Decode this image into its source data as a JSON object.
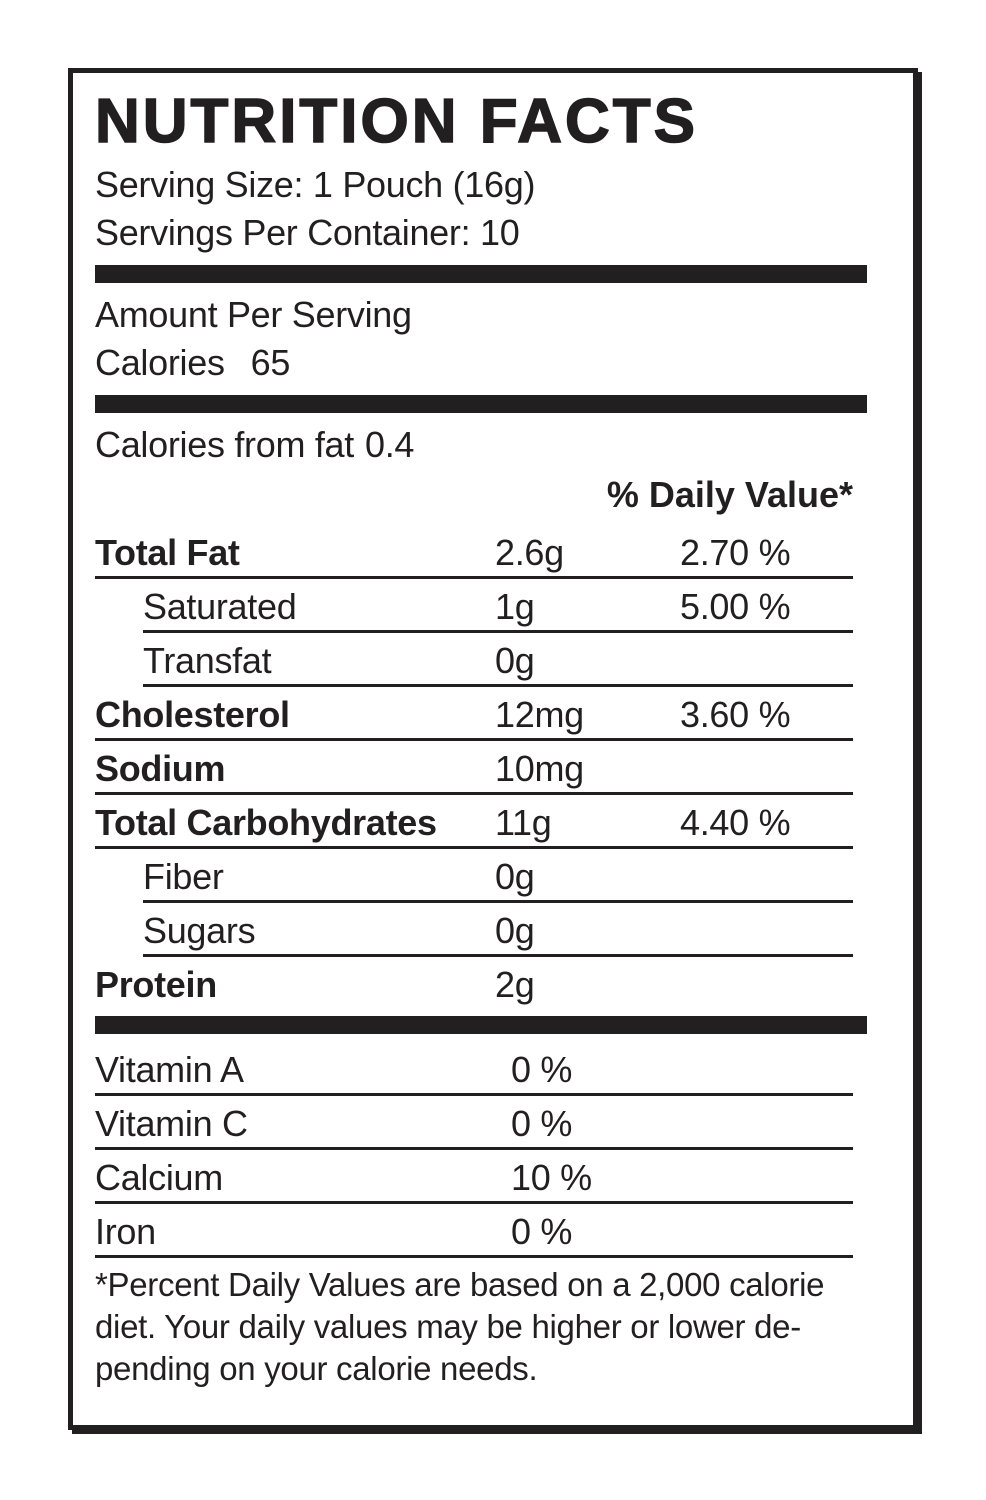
{
  "label": {
    "title": "NUTRITION FACTS",
    "serving_size": "Serving Size: 1 Pouch (16g)",
    "servings_per_container": "Servings Per Container: 10",
    "amount_per_serving": "Amount Per Serving",
    "calories_label": "Calories",
    "calories_value": "65",
    "calories_from_fat_label": "Calories from fat",
    "calories_from_fat_value": "0.4",
    "daily_value_header": "% Daily Value*",
    "nutrients": [
      {
        "name": "Total Fat",
        "amount": "2.6g",
        "daily_value": "2.70 %"
      },
      {
        "name": "Saturated",
        "amount": "1g",
        "daily_value": "5.00 %"
      },
      {
        "name": "Transfat",
        "amount": "0g",
        "daily_value": ""
      },
      {
        "name": "Cholesterol",
        "amount": "12mg",
        "daily_value": "3.60 %"
      },
      {
        "name": "Sodium",
        "amount": "10mg",
        "daily_value": ""
      },
      {
        "name": "Total Carbohydrates",
        "amount": "11g",
        "daily_value": "4.40 %"
      },
      {
        "name": "Fiber",
        "amount": "0g",
        "daily_value": ""
      },
      {
        "name": "Sugars",
        "amount": "0g",
        "daily_value": ""
      },
      {
        "name": "Protein",
        "amount": "2g",
        "daily_value": ""
      }
    ],
    "micronutrients": [
      {
        "name": "Vitamin A",
        "value": "0 %"
      },
      {
        "name": "Vitamin C",
        "value": "0 %"
      },
      {
        "name": "Calcium",
        "value": "10 %"
      },
      {
        "name": "Iron",
        "value": "0 %"
      }
    ],
    "footnote_lines": [
      "*Percent Daily Values are based on a 2,000 calorie",
      "diet. Your daily values may be higher or lower de-",
      "pending on your calorie needs."
    ],
    "colors": {
      "ink": "#221f20",
      "background": "#ffffff"
    }
  }
}
